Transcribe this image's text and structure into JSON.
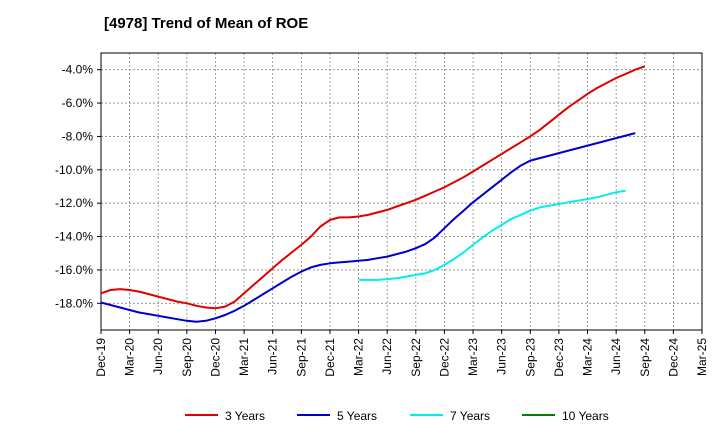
{
  "chart_data": {
    "type": "line",
    "title": "[4978]  Trend of Mean of ROE",
    "xlabel": "",
    "ylabel": "",
    "x_ticks": [
      "Dec-19",
      "Mar-20",
      "Jun-20",
      "Sep-20",
      "Dec-20",
      "Mar-21",
      "Jun-21",
      "Sep-21",
      "Dec-21",
      "Mar-22",
      "Jun-22",
      "Sep-22",
      "Dec-22",
      "Mar-23",
      "Jun-23",
      "Sep-23",
      "Dec-23",
      "Mar-24",
      "Jun-24",
      "Sep-24",
      "Dec-24",
      "Mar-25"
    ],
    "y_ticks": [
      "-4.0%",
      "-6.0%",
      "-8.0%",
      "-10.0%",
      "-12.0%",
      "-14.0%",
      "-16.0%",
      "-18.0%"
    ],
    "y_tick_values": [
      -4,
      -6,
      -8,
      -10,
      -12,
      -14,
      -16,
      -18
    ],
    "ylim": [
      -19.6,
      -3.0
    ],
    "grid": true,
    "legend_position": "bottom",
    "series": [
      {
        "name": "3 Years",
        "color": "#e00000",
        "points": [
          [
            "Dec-19",
            -17.4
          ],
          [
            "Jan-20",
            -17.2
          ],
          [
            "Feb-20",
            -17.15
          ],
          [
            "Mar-20",
            -17.2
          ],
          [
            "Apr-20",
            -17.3
          ],
          [
            "May-20",
            -17.45
          ],
          [
            "Jun-20",
            -17.6
          ],
          [
            "Jul-20",
            -17.75
          ],
          [
            "Aug-20",
            -17.9
          ],
          [
            "Sep-20",
            -18.0
          ],
          [
            "Oct-20",
            -18.15
          ],
          [
            "Nov-20",
            -18.25
          ],
          [
            "Dec-20",
            -18.3
          ],
          [
            "Jan-21",
            -18.2
          ],
          [
            "Feb-21",
            -17.9
          ],
          [
            "Mar-21",
            -17.4
          ],
          [
            "Apr-21",
            -16.9
          ],
          [
            "May-21",
            -16.4
          ],
          [
            "Jun-21",
            -15.9
          ],
          [
            "Jul-21",
            -15.4
          ],
          [
            "Aug-21",
            -14.95
          ],
          [
            "Sep-21",
            -14.5
          ],
          [
            "Oct-21",
            -14.0
          ],
          [
            "Nov-21",
            -13.4
          ],
          [
            "Dec-21",
            -13.0
          ],
          [
            "Jan-22",
            -12.85
          ],
          [
            "Feb-22",
            -12.85
          ],
          [
            "Mar-22",
            -12.8
          ],
          [
            "Apr-22",
            -12.7
          ],
          [
            "May-22",
            -12.55
          ],
          [
            "Jun-22",
            -12.4
          ],
          [
            "Jul-22",
            -12.2
          ],
          [
            "Aug-22",
            -12.0
          ],
          [
            "Sep-22",
            -11.8
          ],
          [
            "Oct-22",
            -11.55
          ],
          [
            "Nov-22",
            -11.3
          ],
          [
            "Dec-22",
            -11.05
          ],
          [
            "Jan-23",
            -10.75
          ],
          [
            "Feb-23",
            -10.45
          ],
          [
            "Mar-23",
            -10.1
          ],
          [
            "Apr-23",
            -9.75
          ],
          [
            "May-23",
            -9.4
          ],
          [
            "Jun-23",
            -9.05
          ],
          [
            "Jul-23",
            -8.7
          ],
          [
            "Aug-23",
            -8.35
          ],
          [
            "Sep-23",
            -8.0
          ],
          [
            "Oct-23",
            -7.6
          ],
          [
            "Nov-23",
            -7.15
          ],
          [
            "Dec-23",
            -6.7
          ],
          [
            "Jan-24",
            -6.25
          ],
          [
            "Feb-24",
            -5.85
          ],
          [
            "Mar-24",
            -5.45
          ],
          [
            "Apr-24",
            -5.1
          ],
          [
            "May-24",
            -4.8
          ],
          [
            "Jun-24",
            -4.5
          ],
          [
            "Jul-24",
            -4.25
          ],
          [
            "Aug-24",
            -4.0
          ],
          [
            "Sep-24",
            -3.8
          ]
        ]
      },
      {
        "name": "5 Years",
        "color": "#0000cc",
        "points": [
          [
            "Dec-19",
            -17.95
          ],
          [
            "Jan-20",
            -18.1
          ],
          [
            "Feb-20",
            -18.25
          ],
          [
            "Mar-20",
            -18.4
          ],
          [
            "Apr-20",
            -18.55
          ],
          [
            "May-20",
            -18.65
          ],
          [
            "Jun-20",
            -18.75
          ],
          [
            "Jul-20",
            -18.85
          ],
          [
            "Aug-20",
            -18.95
          ],
          [
            "Sep-20",
            -19.05
          ],
          [
            "Oct-20",
            -19.1
          ],
          [
            "Nov-20",
            -19.05
          ],
          [
            "Dec-20",
            -18.9
          ],
          [
            "Jan-21",
            -18.7
          ],
          [
            "Feb-21",
            -18.45
          ],
          [
            "Mar-21",
            -18.15
          ],
          [
            "Apr-21",
            -17.8
          ],
          [
            "May-21",
            -17.45
          ],
          [
            "Jun-21",
            -17.1
          ],
          [
            "Jul-21",
            -16.75
          ],
          [
            "Aug-21",
            -16.4
          ],
          [
            "Sep-21",
            -16.1
          ],
          [
            "Oct-21",
            -15.85
          ],
          [
            "Nov-21",
            -15.7
          ],
          [
            "Dec-21",
            -15.6
          ],
          [
            "Jan-22",
            -15.55
          ],
          [
            "Feb-22",
            -15.5
          ],
          [
            "Mar-22",
            -15.45
          ],
          [
            "Apr-22",
            -15.4
          ],
          [
            "May-22",
            -15.3
          ],
          [
            "Jun-22",
            -15.2
          ],
          [
            "Jul-22",
            -15.05
          ],
          [
            "Aug-22",
            -14.9
          ],
          [
            "Sep-22",
            -14.7
          ],
          [
            "Oct-22",
            -14.45
          ],
          [
            "Nov-22",
            -14.05
          ],
          [
            "Dec-22",
            -13.5
          ],
          [
            "Jan-23",
            -12.95
          ],
          [
            "Feb-23",
            -12.45
          ],
          [
            "Mar-23",
            -11.95
          ],
          [
            "Apr-23",
            -11.5
          ],
          [
            "May-23",
            -11.05
          ],
          [
            "Jun-23",
            -10.6
          ],
          [
            "Jul-23",
            -10.15
          ],
          [
            "Aug-23",
            -9.75
          ],
          [
            "Sep-23",
            -9.45
          ],
          [
            "Oct-23",
            -9.3
          ],
          [
            "Nov-23",
            -9.15
          ],
          [
            "Dec-23",
            -9.0
          ],
          [
            "Jan-24",
            -8.85
          ],
          [
            "Feb-24",
            -8.7
          ],
          [
            "Mar-24",
            -8.55
          ],
          [
            "Apr-24",
            -8.4
          ],
          [
            "May-24",
            -8.25
          ],
          [
            "Jun-24",
            -8.1
          ],
          [
            "Jul-24",
            -7.95
          ],
          [
            "Aug-24",
            -7.8
          ]
        ]
      },
      {
        "name": "7 Years",
        "color": "#00eeee",
        "points": [
          [
            "Mar-22",
            -16.6
          ],
          [
            "Apr-22",
            -16.6
          ],
          [
            "May-22",
            -16.6
          ],
          [
            "Jun-22",
            -16.55
          ],
          [
            "Jul-22",
            -16.5
          ],
          [
            "Aug-22",
            -16.4
          ],
          [
            "Sep-22",
            -16.3
          ],
          [
            "Oct-22",
            -16.2
          ],
          [
            "Nov-22",
            -16.0
          ],
          [
            "Dec-22",
            -15.7
          ],
          [
            "Jan-23",
            -15.35
          ],
          [
            "Feb-23",
            -14.95
          ],
          [
            "Mar-23",
            -14.5
          ],
          [
            "Apr-23",
            -14.05
          ],
          [
            "May-23",
            -13.65
          ],
          [
            "Jun-23",
            -13.3
          ],
          [
            "Jul-23",
            -12.95
          ],
          [
            "Aug-23",
            -12.7
          ],
          [
            "Sep-23",
            -12.45
          ],
          [
            "Oct-23",
            -12.25
          ],
          [
            "Nov-23",
            -12.15
          ],
          [
            "Dec-23",
            -12.05
          ],
          [
            "Jan-24",
            -11.95
          ],
          [
            "Feb-24",
            -11.85
          ],
          [
            "Mar-24",
            -11.75
          ],
          [
            "Apr-24",
            -11.65
          ],
          [
            "May-24",
            -11.5
          ],
          [
            "Jun-24",
            -11.35
          ],
          [
            "Jul-24",
            -11.25
          ]
        ]
      },
      {
        "name": "10 Years",
        "color": "#008000",
        "points": []
      }
    ]
  }
}
